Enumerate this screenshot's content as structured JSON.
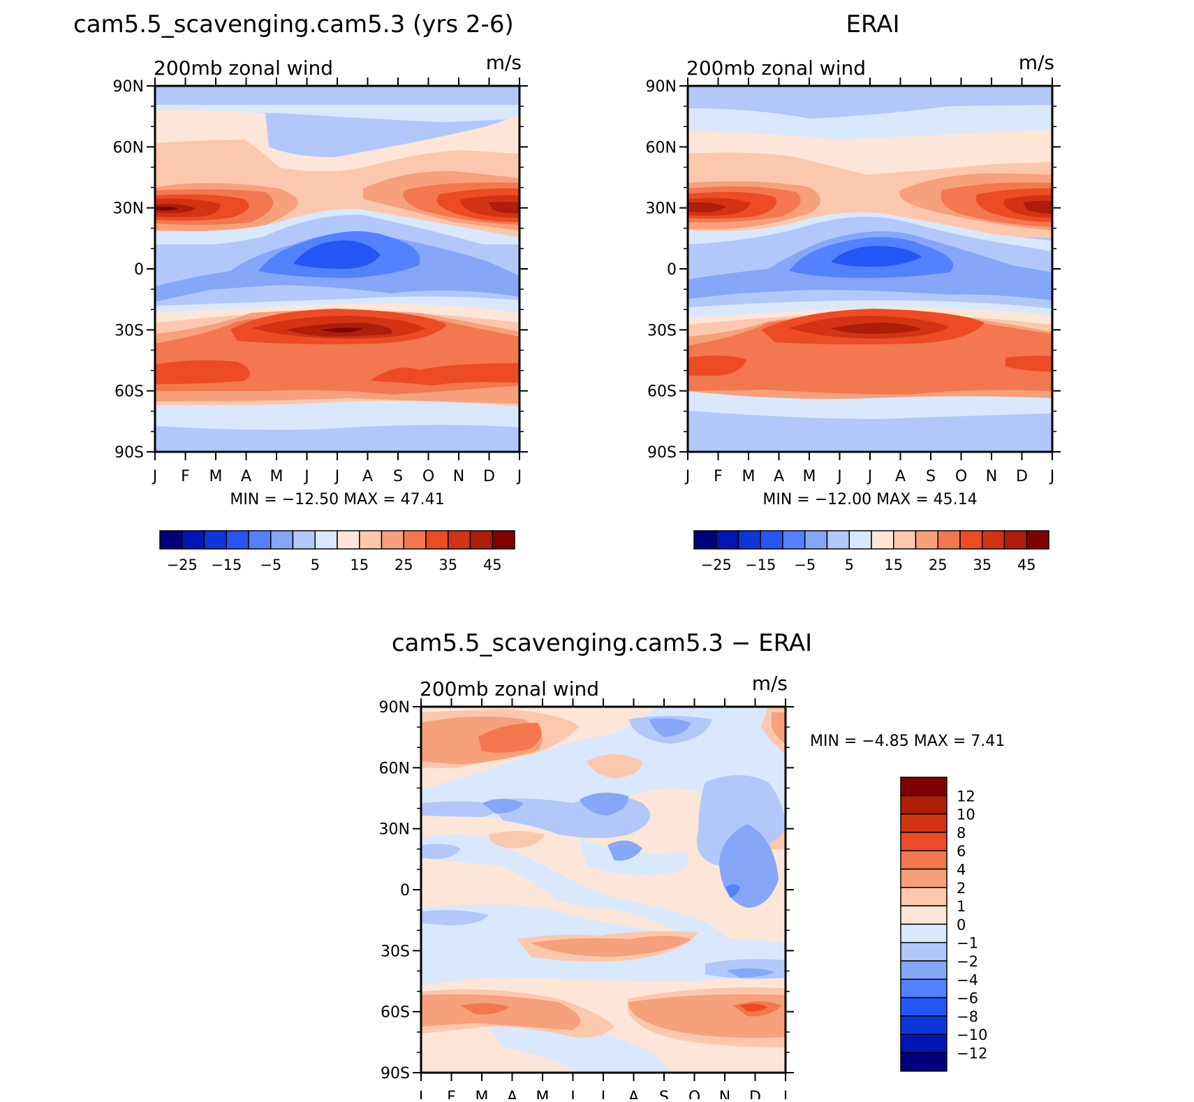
{
  "panels": [
    {
      "title": "cam5.5_scavenging.cam5.3 (yrs 2-6)",
      "left_label": "200mb zonal wind",
      "right_label": "m/s",
      "minmax": "MIN = −12.50 MAX =   47.41"
    },
    {
      "title": "ERAI",
      "left_label": "200mb zonal wind",
      "right_label": "m/s",
      "minmax": "MIN = −12.00 MAX =   45.14"
    },
    {
      "title": "cam5.5_scavenging.cam5.3 − ERAI",
      "left_label": "200mb zonal wind",
      "right_label": "m/s",
      "minmax": "MIN =   −4.85 MAX =    7.41"
    }
  ],
  "axes": {
    "y_ticks": [
      "90N",
      "60N",
      "30N",
      "0",
      "30S",
      "60S",
      "90S"
    ],
    "x_ticks": [
      "J",
      "F",
      "M",
      "A",
      "M",
      "J",
      "J",
      "A",
      "S",
      "O",
      "N",
      "D",
      "J"
    ]
  },
  "colorbar_horizontal": {
    "labels": [
      "−25",
      "−15",
      "−5",
      "5",
      "15",
      "25",
      "35",
      "45"
    ],
    "colors": [
      "#00007f",
      "#0016b4",
      "#0d36d9",
      "#2655f5",
      "#5381ff",
      "#86a7f7",
      "#b2c8fb",
      "#d9e8fd",
      "#fde6d7",
      "#fcc8ad",
      "#f7a07c",
      "#f3774f",
      "#ec4b24",
      "#d23413",
      "#ae1e08",
      "#800000"
    ]
  },
  "colorbar_vertical": {
    "labels": [
      "12",
      "10",
      "8",
      "6",
      "4",
      "2",
      "1",
      "0",
      "−1",
      "−2",
      "−4",
      "−6",
      "−8",
      "−10",
      "−12"
    ],
    "colors": [
      "#800000",
      "#ae1e08",
      "#d23413",
      "#ec4b24",
      "#f3774f",
      "#f7a07c",
      "#fcc8ad",
      "#fde6d7",
      "#d9e8fd",
      "#b2c8fb",
      "#86a7f7",
      "#5381ff",
      "#2655f5",
      "#0d36d9",
      "#0016b4",
      "#00007f"
    ]
  },
  "chart_data": [
    {
      "type": "heatmap",
      "title": "cam5.5_scavenging.cam5.3 (yrs 2-6)",
      "variable": "200mb zonal wind",
      "units": "m/s",
      "x": [
        "J",
        "F",
        "M",
        "A",
        "M",
        "J",
        "J",
        "A",
        "S",
        "O",
        "N",
        "D",
        "J"
      ],
      "y": [
        90,
        60,
        30,
        0,
        -30,
        -60,
        -90
      ],
      "levels": [
        -25,
        -15,
        -5,
        5,
        15,
        25,
        35,
        45
      ],
      "values": [
        [
          2,
          3,
          3,
          2,
          0,
          0,
          0,
          -1,
          -2,
          -1,
          1,
          3,
          2
        ],
        [
          10,
          12,
          14,
          12,
          4,
          2,
          2,
          2,
          4,
          6,
          10,
          12,
          10
        ],
        [
          42,
          46,
          40,
          28,
          14,
          4,
          -2,
          -3,
          2,
          16,
          34,
          44,
          42
        ],
        [
          -2,
          -4,
          -2,
          -2,
          -4,
          -6,
          -10,
          -12,
          -8,
          -6,
          -2,
          0,
          -2
        ],
        [
          10,
          12,
          20,
          30,
          38,
          44,
          47,
          44,
          38,
          30,
          24,
          20,
          12
        ],
        [
          30,
          30,
          30,
          26,
          26,
          26,
          24,
          22,
          26,
          28,
          30,
          30,
          30
        ],
        [
          2,
          2,
          2,
          0,
          0,
          0,
          0,
          -1,
          -1,
          0,
          0,
          2,
          2
        ]
      ],
      "min": -12.5,
      "max": 47.41
    },
    {
      "type": "heatmap",
      "title": "ERAI",
      "variable": "200mb zonal wind",
      "units": "m/s",
      "x": [
        "J",
        "F",
        "M",
        "A",
        "M",
        "J",
        "J",
        "A",
        "S",
        "O",
        "N",
        "D",
        "J"
      ],
      "y": [
        90,
        60,
        30,
        0,
        -30,
        -60,
        -90
      ],
      "levels": [
        -25,
        -15,
        -5,
        5,
        15,
        25,
        35,
        45
      ],
      "values": [
        [
          2,
          2,
          2,
          2,
          0,
          0,
          0,
          0,
          0,
          0,
          0,
          2,
          2
        ],
        [
          10,
          10,
          10,
          10,
          8,
          8,
          6,
          6,
          8,
          10,
          10,
          10,
          10
        ],
        [
          40,
          45,
          38,
          24,
          12,
          4,
          -2,
          -4,
          2,
          14,
          32,
          42,
          40
        ],
        [
          -2,
          -4,
          -2,
          -2,
          -4,
          -6,
          -10,
          -12,
          -8,
          -6,
          -2,
          0,
          -2
        ],
        [
          10,
          12,
          20,
          30,
          38,
          42,
          45,
          42,
          36,
          28,
          22,
          18,
          12
        ],
        [
          30,
          30,
          28,
          26,
          26,
          26,
          24,
          24,
          26,
          26,
          28,
          30,
          30
        ],
        [
          2,
          2,
          2,
          0,
          0,
          0,
          0,
          0,
          0,
          0,
          0,
          2,
          2
        ]
      ],
      "min": -12.0,
      "max": 45.14
    },
    {
      "type": "heatmap",
      "title": "cam5.5_scavenging.cam5.3 − ERAI",
      "variable": "200mb zonal wind",
      "units": "m/s",
      "x": [
        "J",
        "F",
        "M",
        "A",
        "M",
        "J",
        "J",
        "A",
        "S",
        "O",
        "N",
        "D",
        "J"
      ],
      "y": [
        90,
        60,
        30,
        0,
        -30,
        -60,
        -90
      ],
      "levels": [
        -12,
        -10,
        -8,
        -6,
        -4,
        -2,
        -1,
        0,
        1,
        2,
        4,
        6,
        8,
        10,
        12
      ],
      "values": [
        [
          2,
          3,
          4,
          2,
          0,
          -1,
          0,
          -2,
          -1,
          0,
          1,
          2,
          2
        ],
        [
          2,
          2,
          3,
          1,
          -1,
          1,
          1,
          0,
          0,
          -1,
          0,
          0,
          1
        ],
        [
          0,
          0,
          1,
          1,
          0,
          -2,
          -1,
          -2,
          -1,
          1,
          3,
          2,
          1
        ],
        [
          1,
          0,
          0,
          -1,
          0,
          -1,
          -1,
          0,
          -1,
          -3,
          -4,
          -2,
          1
        ],
        [
          0,
          0,
          1,
          1,
          1,
          1,
          2,
          2,
          1,
          0,
          0,
          0,
          0
        ],
        [
          3,
          3,
          3,
          2,
          3,
          2,
          0,
          2,
          2,
          2,
          3,
          5,
          3
        ],
        [
          1,
          1,
          1,
          0,
          0,
          -1,
          -1,
          -1,
          -1,
          0,
          1,
          1,
          1
        ]
      ],
      "min": -4.85,
      "max": 7.41
    }
  ]
}
